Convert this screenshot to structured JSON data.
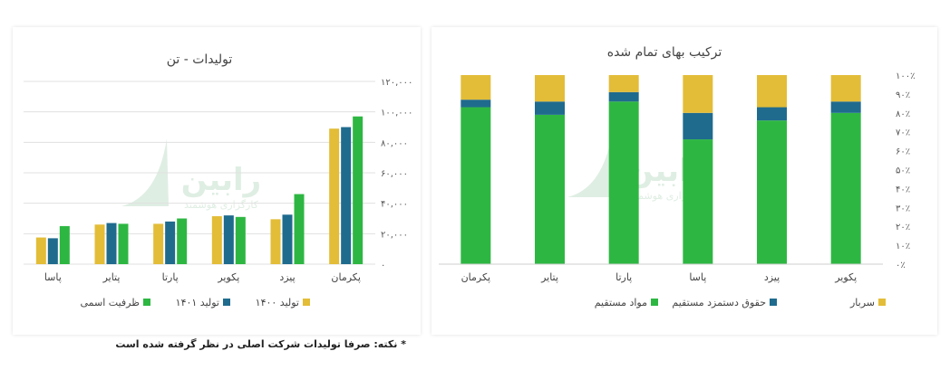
{
  "colors": {
    "green": "#2db742",
    "blue": "#1f6b8e",
    "yellow": "#e3bd38",
    "grid": "#e0e0e0",
    "watermark": "#dfeee3"
  },
  "watermark": {
    "name": "رابین",
    "tagline": "کارگزاری هوشمند"
  },
  "footnote": "* نکته: صرفا تولیدات شرکت اصلی در نظر گرفته شده است",
  "chart_data": [
    {
      "type": "bar",
      "title": "تولیدات - تن",
      "categories": [
        "پاسا",
        "پتایر",
        "پارتا",
        "پکویر",
        "پیزد",
        "پکرمان"
      ],
      "series": [
        {
          "name": "تولید ۱۴۰۰",
          "color": "#e3bd38",
          "values": [
            17500,
            26000,
            26500,
            31500,
            29500,
            89000
          ]
        },
        {
          "name": "تولید ۱۴۰۱",
          "color": "#1f6b8e",
          "values": [
            17000,
            27000,
            28000,
            32000,
            32500,
            90000
          ]
        },
        {
          "name": "ظرفیت اسمی",
          "color": "#2db742",
          "values": [
            25000,
            26500,
            30000,
            31000,
            46000,
            97000
          ]
        }
      ],
      "yticks": [
        "۰",
        "۲۰,۰۰۰",
        "۴۰,۰۰۰",
        "۶۰,۰۰۰",
        "۸۰,۰۰۰",
        "۱۰۰,۰۰۰",
        "۱۲۰,۰۰۰"
      ],
      "ylim": [
        0,
        120000
      ],
      "grid": true,
      "legend": "bottom"
    },
    {
      "type": "bar",
      "stacked": true,
      "title": "ترکیب بهای تمام شده",
      "categories": [
        "پکرمان",
        "پتایر",
        "پارتا",
        "پاسا",
        "پیزد",
        "پکویر"
      ],
      "series": [
        {
          "name": "مواد مستقیم",
          "color": "#2db742",
          "values": [
            83,
            79,
            86,
            66,
            76,
            80
          ]
        },
        {
          "name": "حقوق دستمزد مستقیم",
          "color": "#1f6b8e",
          "values": [
            4,
            7,
            5,
            14,
            7,
            6
          ]
        },
        {
          "name": "سربار",
          "color": "#e3bd38",
          "values": [
            13,
            14,
            9,
            20,
            17,
            14
          ]
        }
      ],
      "yticks": [
        "۰٪",
        "۱۰٪",
        "۲۰٪",
        "۳۰٪",
        "۴۰٪",
        "۵۰٪",
        "۶۰٪",
        "۷۰٪",
        "۸۰٪",
        "۹۰٪",
        "۱۰۰٪"
      ],
      "ylim": [
        0,
        100
      ],
      "grid": false,
      "legend": "bottom"
    }
  ]
}
